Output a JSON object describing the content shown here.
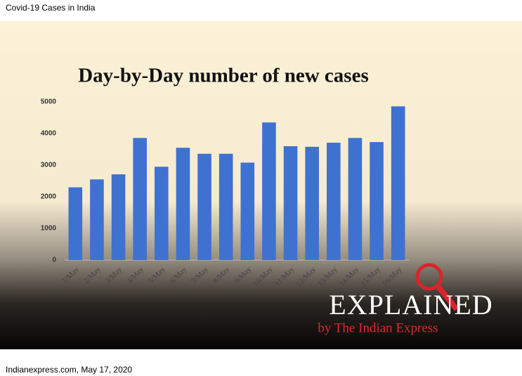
{
  "page_title": "Covid-19 Cases in India",
  "footer": "Indianexpress.com, May 17, 2020",
  "logo": {
    "title": "EXPLAINED",
    "subtitle": "by The Indian Express"
  },
  "chart_data": {
    "type": "bar",
    "title": "Day-by-Day number of new cases",
    "categories": [
      "1/May",
      "2/May",
      "3/May",
      "4/May",
      "5/May",
      "6/May",
      "7/May",
      "8/May",
      "9/May",
      "10/May",
      "11/May",
      "12/May",
      "13/May",
      "14/May",
      "15/May",
      "16/May"
    ],
    "values": [
      2300,
      2550,
      2710,
      3860,
      2950,
      3550,
      3360,
      3360,
      3080,
      4350,
      3600,
      3580,
      3710,
      3860,
      3730,
      4860
    ],
    "color": "#3f72d0",
    "ylim": [
      0,
      5000
    ],
    "yticks": [
      0,
      1000,
      2000,
      3000,
      4000,
      5000
    ],
    "grid": false
  }
}
